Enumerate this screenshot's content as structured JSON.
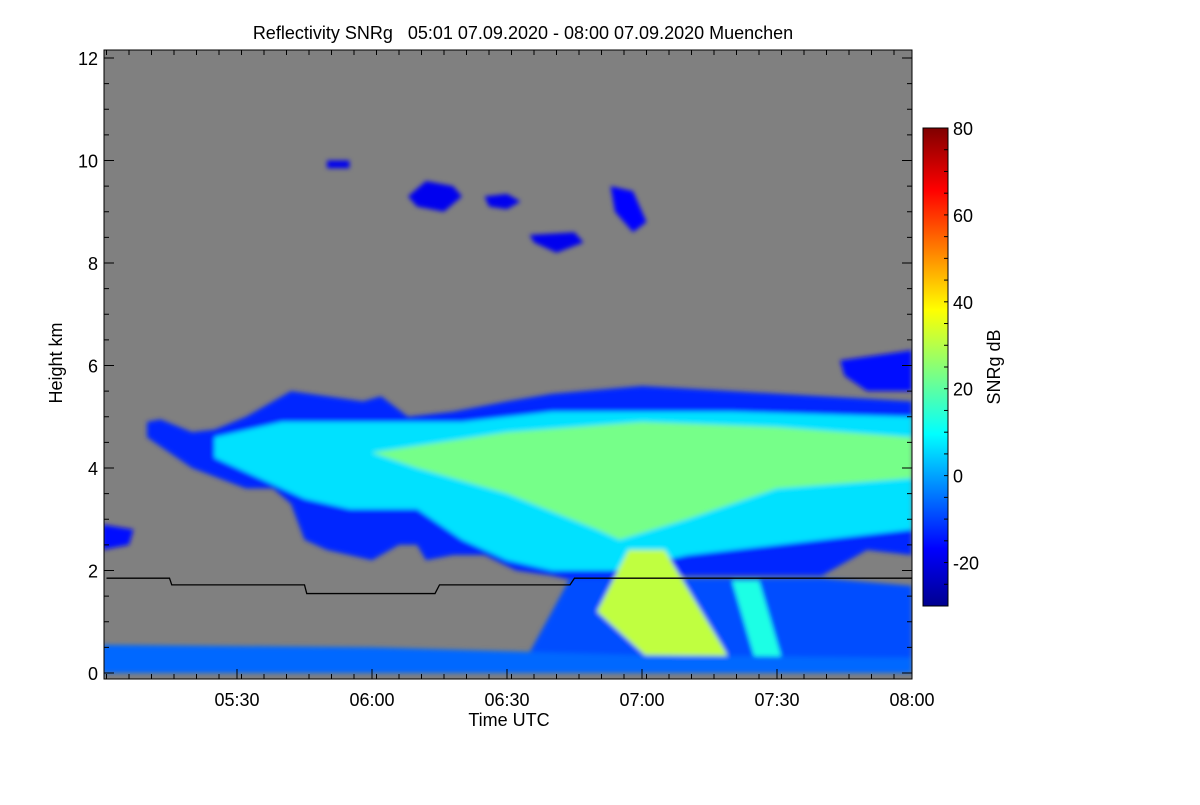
{
  "chart_data": {
    "type": "heatmap",
    "title": "Reflectivity SNRg   05:01 07.09.2020 - 08:00 07.09.2020 Muenchen",
    "xlabel": "Time UTC",
    "ylabel": "Height km",
    "xlim_minutes_after_0500": [
      1,
      180
    ],
    "ylim": [
      -0.1,
      12.15
    ],
    "x_ticks": [
      {
        "t": 30,
        "label": "05:30"
      },
      {
        "t": 60,
        "label": "06:00"
      },
      {
        "t": 90,
        "label": "06:30"
      },
      {
        "t": 120,
        "label": "07:00"
      },
      {
        "t": 150,
        "label": "07:30"
      },
      {
        "t": 180,
        "label": "08:00"
      }
    ],
    "y_ticks": [
      0,
      2,
      4,
      6,
      8,
      10,
      12
    ],
    "colorbar": {
      "label": "SNRg dB",
      "range": [
        -30,
        80
      ],
      "ticks": [
        -20,
        0,
        20,
        40,
        60,
        80
      ],
      "colormap": "jet"
    },
    "background_color": "#808080",
    "regions": [
      {
        "name": "cloud-envelope",
        "snr_db": -12,
        "points": [
          [
            10,
            4.9
          ],
          [
            13,
            4.95
          ],
          [
            20,
            4.7
          ],
          [
            25,
            4.75
          ],
          [
            32,
            5.0
          ],
          [
            38,
            5.3
          ],
          [
            42,
            5.5
          ],
          [
            50,
            5.4
          ],
          [
            58,
            5.3
          ],
          [
            62,
            5.4
          ],
          [
            68,
            5.0
          ],
          [
            78,
            5.1
          ],
          [
            90,
            5.3
          ],
          [
            100,
            5.45
          ],
          [
            120,
            5.6
          ],
          [
            140,
            5.5
          ],
          [
            160,
            5.4
          ],
          [
            180,
            5.3
          ],
          [
            180,
            2.3
          ],
          [
            170,
            2.4
          ],
          [
            160,
            1.9
          ],
          [
            140,
            1.9
          ],
          [
            120,
            1.9
          ],
          [
            105,
            1.8
          ],
          [
            100,
            1.9
          ],
          [
            92,
            2.0
          ],
          [
            85,
            2.3
          ],
          [
            78,
            2.3
          ],
          [
            72,
            2.2
          ],
          [
            70,
            2.5
          ],
          [
            66,
            2.5
          ],
          [
            60,
            2.2
          ],
          [
            55,
            2.3
          ],
          [
            50,
            2.4
          ],
          [
            45,
            2.6
          ],
          [
            42,
            3.3
          ],
          [
            38,
            3.6
          ],
          [
            32,
            3.6
          ],
          [
            26,
            3.8
          ],
          [
            20,
            4.0
          ],
          [
            15,
            4.3
          ],
          [
            10,
            4.6
          ]
        ]
      },
      {
        "name": "precip-fall",
        "snr_db": -8,
        "points": [
          [
            104,
            1.85
          ],
          [
            125,
            1.85
          ],
          [
            160,
            1.85
          ],
          [
            180,
            1.7
          ],
          [
            180,
            0.2
          ],
          [
            100,
            0.2
          ],
          [
            95,
            0.4
          ],
          [
            100,
            1.2
          ]
        ]
      },
      {
        "name": "cloud-mid",
        "snr_db": 8,
        "points": [
          [
            25,
            4.6
          ],
          [
            40,
            4.9
          ],
          [
            60,
            4.9
          ],
          [
            80,
            4.9
          ],
          [
            100,
            5.1
          ],
          [
            140,
            5.1
          ],
          [
            180,
            5.0
          ],
          [
            180,
            2.8
          ],
          [
            160,
            2.6
          ],
          [
            130,
            2.3
          ],
          [
            115,
            2.0
          ],
          [
            100,
            2.0
          ],
          [
            90,
            2.2
          ],
          [
            80,
            2.6
          ],
          [
            70,
            3.2
          ],
          [
            55,
            3.2
          ],
          [
            45,
            3.4
          ],
          [
            35,
            3.8
          ],
          [
            25,
            4.2
          ]
        ]
      },
      {
        "name": "cloud-core",
        "snr_db": 24,
        "points": [
          [
            60,
            4.3
          ],
          [
            90,
            4.7
          ],
          [
            120,
            4.9
          ],
          [
            150,
            4.8
          ],
          [
            180,
            4.6
          ],
          [
            180,
            3.8
          ],
          [
            150,
            3.6
          ],
          [
            130,
            3.0
          ],
          [
            115,
            2.6
          ],
          [
            110,
            2.8
          ],
          [
            90,
            3.5
          ],
          [
            70,
            4.0
          ]
        ]
      },
      {
        "name": "fallstreak",
        "snr_db": 32,
        "points": [
          [
            117,
            2.4
          ],
          [
            125,
            2.4
          ],
          [
            138,
            0.5
          ],
          [
            141,
            0
          ],
          [
            125,
            0
          ],
          [
            110,
            1.2
          ]
        ]
      },
      {
        "name": "fallstreak-2",
        "snr_db": 14,
        "points": [
          [
            140,
            1.8
          ],
          [
            146,
            1.8
          ],
          [
            152,
            0
          ],
          [
            146,
            0
          ]
        ]
      },
      {
        "name": "ground-clutter",
        "snr_db": -5,
        "points": [
          [
            0,
            0
          ],
          [
            180,
            0
          ],
          [
            180,
            0.3
          ],
          [
            120,
            0.35
          ],
          [
            60,
            0.5
          ],
          [
            0,
            0.55
          ]
        ]
      },
      {
        "name": "upper-patch-6km",
        "snr_db": -15,
        "points": [
          [
            164,
            6.1
          ],
          [
            172,
            6.2
          ],
          [
            180,
            6.3
          ],
          [
            180,
            5.5
          ],
          [
            170,
            5.5
          ],
          [
            165,
            5.8
          ]
        ]
      },
      {
        "name": "left-patch-2.8km",
        "snr_db": -15,
        "points": [
          [
            0,
            2.9
          ],
          [
            7,
            2.8
          ],
          [
            6,
            2.5
          ],
          [
            0,
            2.4
          ]
        ]
      },
      {
        "name": "cirrus-1",
        "snr_db": -18,
        "points": [
          [
            68,
            9.3
          ],
          [
            72,
            9.6
          ],
          [
            78,
            9.5
          ],
          [
            80,
            9.3
          ],
          [
            76,
            9.0
          ],
          [
            70,
            9.1
          ]
        ]
      },
      {
        "name": "cirrus-2",
        "snr_db": -18,
        "points": [
          [
            85,
            9.3
          ],
          [
            90,
            9.35
          ],
          [
            93,
            9.2
          ],
          [
            90,
            9.05
          ],
          [
            86,
            9.1
          ]
        ]
      },
      {
        "name": "cirrus-3",
        "snr_db": -18,
        "points": [
          [
            95,
            8.55
          ],
          [
            105,
            8.6
          ],
          [
            107,
            8.4
          ],
          [
            101,
            8.2
          ],
          [
            96,
            8.4
          ]
        ]
      },
      {
        "name": "cirrus-4",
        "snr_db": -16,
        "points": [
          [
            113,
            9.5
          ],
          [
            118,
            9.4
          ],
          [
            121,
            8.8
          ],
          [
            118,
            8.6
          ],
          [
            114,
            9.0
          ]
        ]
      },
      {
        "name": "cirrus-5",
        "snr_db": -18,
        "points": [
          [
            50,
            10.0
          ],
          [
            55,
            10.0
          ],
          [
            55,
            9.85
          ],
          [
            50,
            9.85
          ]
        ]
      }
    ],
    "boundary_line": {
      "color": "#000000",
      "points": [
        [
          1,
          1.85
        ],
        [
          15,
          1.85
        ],
        [
          15.5,
          1.72
        ],
        [
          45,
          1.72
        ],
        [
          45.5,
          1.55
        ],
        [
          74,
          1.55
        ],
        [
          75,
          1.72
        ],
        [
          104,
          1.72
        ],
        [
          105,
          1.85
        ],
        [
          180,
          1.85
        ]
      ]
    }
  }
}
